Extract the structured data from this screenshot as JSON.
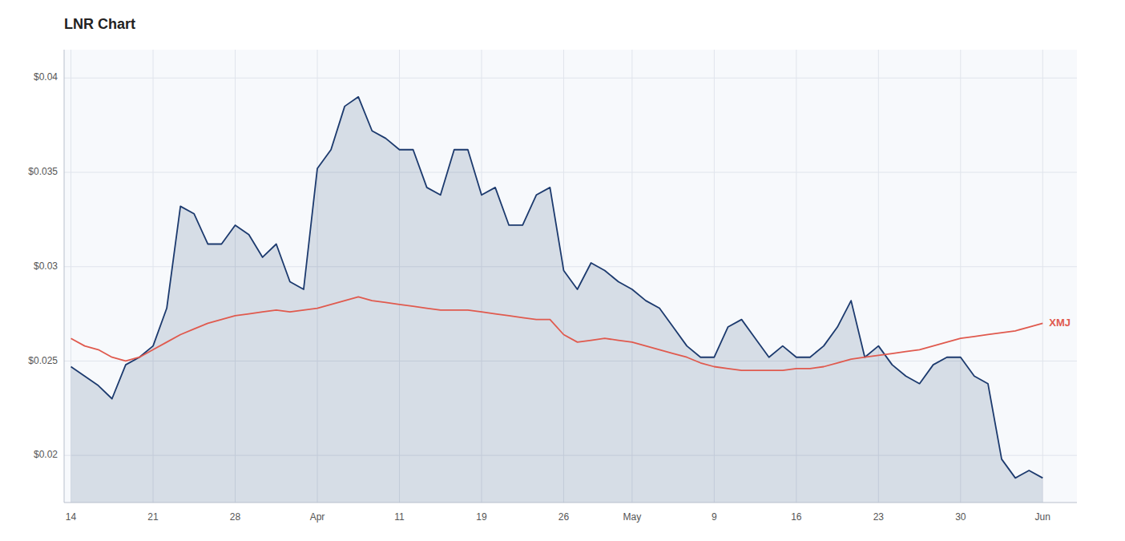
{
  "chart_data": {
    "type": "line",
    "title": "LNR Chart",
    "categories": [
      "14",
      null,
      null,
      null,
      null,
      null,
      "21",
      null,
      null,
      null,
      null,
      null,
      "28",
      null,
      null,
      null,
      null,
      null,
      "Apr",
      null,
      null,
      null,
      null,
      null,
      "11",
      null,
      null,
      null,
      null,
      null,
      "19",
      null,
      null,
      null,
      null,
      null,
      "26",
      null,
      null,
      null,
      null,
      "May",
      null,
      null,
      null,
      null,
      null,
      "9",
      null,
      null,
      null,
      null,
      null,
      "16",
      null,
      null,
      null,
      null,
      null,
      "23",
      null,
      null,
      null,
      null,
      null,
      "30",
      null,
      null,
      null,
      null,
      null,
      "Jun"
    ],
    "series": [
      {
        "type": "area",
        "color": "#1c3a6e",
        "values": [
          0.0247,
          0.0242,
          0.0237,
          0.023,
          0.0248,
          0.0252,
          0.0258,
          0.0278,
          0.0332,
          0.0328,
          0.0312,
          0.0312,
          0.0322,
          0.0317,
          0.0305,
          0.0312,
          0.0292,
          0.0288,
          0.0352,
          0.0362,
          0.0385,
          0.039,
          0.0372,
          0.0368,
          0.0362,
          0.0362,
          0.0342,
          0.0338,
          0.0362,
          0.0362,
          0.0338,
          0.0342,
          0.0322,
          0.0322,
          0.0338,
          0.0342,
          0.0298,
          0.0288,
          0.0302,
          0.0298,
          0.0292,
          0.0288,
          0.0282,
          0.0278,
          0.0268,
          0.0258,
          0.0252,
          0.0252,
          0.0268,
          0.0272,
          0.0262,
          0.0252,
          0.0258,
          0.0252,
          0.0252,
          0.0258,
          0.0268,
          0.0282,
          0.0252,
          0.0258,
          0.0248,
          0.0242,
          0.0238,
          0.0248,
          0.0252,
          0.0252,
          0.0242,
          0.0238,
          0.0198,
          0.0188,
          0.0192,
          0.0188
        ]
      },
      {
        "name": "XMJ",
        "type": "line",
        "color": "#e05a4e",
        "values": [
          0.0262,
          0.0258,
          0.0256,
          0.0252,
          0.025,
          0.0252,
          0.0256,
          0.026,
          0.0264,
          0.0267,
          0.027,
          0.0272,
          0.0274,
          0.0275,
          0.0276,
          0.0277,
          0.0276,
          0.0277,
          0.0278,
          0.028,
          0.0282,
          0.0284,
          0.0282,
          0.0281,
          0.028,
          0.0279,
          0.0278,
          0.0277,
          0.0277,
          0.0277,
          0.0276,
          0.0275,
          0.0274,
          0.0273,
          0.0272,
          0.0272,
          0.0264,
          0.026,
          0.0261,
          0.0262,
          0.0261,
          0.026,
          0.0258,
          0.0256,
          0.0254,
          0.0252,
          0.0249,
          0.0247,
          0.0246,
          0.0245,
          0.0245,
          0.0245,
          0.0245,
          0.0246,
          0.0246,
          0.0247,
          0.0249,
          0.0251,
          0.0252,
          0.0253,
          0.0254,
          0.0255,
          0.0256,
          0.0258,
          0.026,
          0.0262,
          0.0263,
          0.0264,
          0.0265,
          0.0266,
          0.0268,
          0.027
        ]
      }
    ],
    "ylim": [
      0.0175,
      0.0415
    ],
    "yticks": [
      {
        "value": 0.02,
        "label": "$0.02"
      },
      {
        "value": 0.025,
        "label": "$0.025"
      },
      {
        "value": 0.03,
        "label": "$0.03"
      },
      {
        "value": 0.035,
        "label": "$0.035"
      },
      {
        "value": 0.04,
        "label": "$0.04"
      }
    ],
    "grid": true
  }
}
